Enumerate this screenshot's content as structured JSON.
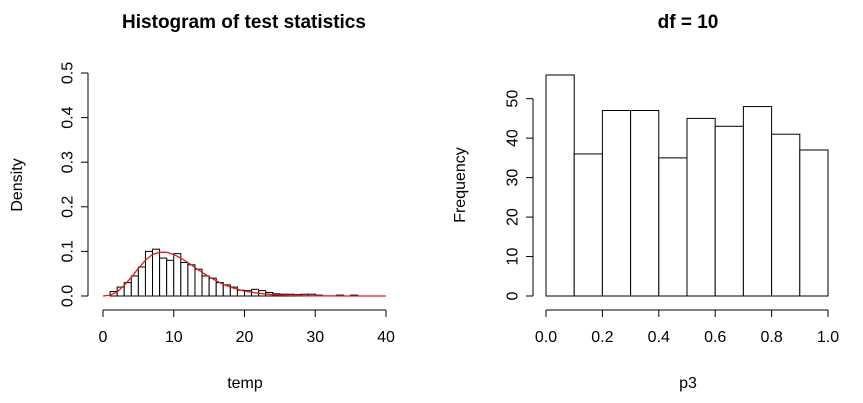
{
  "chart_data": [
    {
      "type": "bar",
      "title": "Histogram of test statistics",
      "xlabel": "temp",
      "ylabel": "Density",
      "xlim": [
        0,
        40
      ],
      "ylim": [
        0,
        0.5
      ],
      "x_ticks": [
        "0",
        "10",
        "20",
        "30",
        "40"
      ],
      "y_ticks": [
        "0.0",
        "0.1",
        "0.2",
        "0.3",
        "0.4",
        "0.5"
      ],
      "bin_width": 1,
      "bin_starts": [
        1,
        2,
        3,
        4,
        5,
        6,
        7,
        8,
        9,
        10,
        11,
        12,
        13,
        14,
        15,
        16,
        17,
        18,
        19,
        20,
        21,
        22,
        23,
        24,
        25,
        26,
        27,
        28,
        29,
        30,
        33,
        35
      ],
      "values": [
        0.01,
        0.02,
        0.03,
        0.045,
        0.065,
        0.1,
        0.105,
        0.085,
        0.08,
        0.095,
        0.075,
        0.07,
        0.06,
        0.045,
        0.04,
        0.03,
        0.025,
        0.02,
        0.013,
        0.012,
        0.015,
        0.012,
        0.008,
        0.005,
        0.004,
        0.004,
        0.003,
        0.004,
        0.004,
        0.002,
        0.002,
        0.002
      ],
      "density_curve": {
        "color": "#e41a1c",
        "x": [
          0,
          1,
          2,
          3,
          4,
          5,
          6,
          7,
          8,
          9,
          10,
          11,
          12,
          13,
          14,
          15,
          16,
          17,
          18,
          19,
          20,
          22,
          24,
          26,
          28,
          30,
          35,
          40
        ],
        "y": [
          0.0,
          0.002,
          0.009,
          0.024,
          0.042,
          0.062,
          0.08,
          0.093,
          0.098,
          0.098,
          0.093,
          0.085,
          0.075,
          0.064,
          0.053,
          0.043,
          0.034,
          0.026,
          0.02,
          0.015,
          0.011,
          0.006,
          0.003,
          0.0016,
          0.0008,
          0.0004,
          0.0001,
          0.0
        ]
      }
    },
    {
      "type": "bar",
      "title": "df = 10",
      "xlabel": "p3",
      "ylabel": "Frequency",
      "xlim": [
        0,
        1
      ],
      "ylim": [
        0,
        56
      ],
      "x_ticks": [
        "0.0",
        "0.2",
        "0.4",
        "0.6",
        "0.8",
        "1.0"
      ],
      "y_ticks": [
        "0",
        "10",
        "20",
        "30",
        "40",
        "50"
      ],
      "bin_width": 0.1,
      "bin_starts": [
        0.0,
        0.1,
        0.2,
        0.3,
        0.4,
        0.5,
        0.6,
        0.7,
        0.8,
        0.9
      ],
      "values": [
        56,
        36,
        47,
        47,
        35,
        45,
        43,
        48,
        41,
        37
      ]
    }
  ]
}
